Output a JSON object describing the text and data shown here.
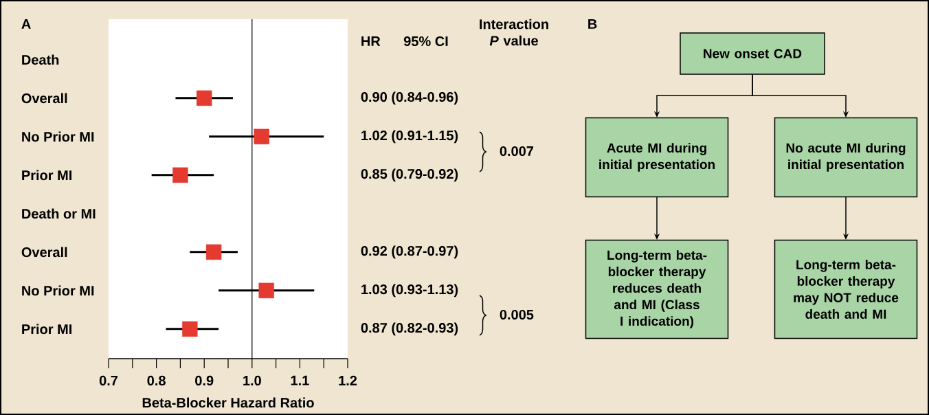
{
  "chart_data": [
    {
      "type": "scatter",
      "title": "A",
      "orientation": "horizontal",
      "marker": "square",
      "color": "#e53a2f",
      "categories": [
        "Death",
        "Overall",
        "No Prior MI",
        "Prior MI",
        "Death or MI",
        "Overall",
        "No Prior MI",
        "Prior MI"
      ],
      "values": [
        null,
        0.9,
        1.02,
        0.85,
        null,
        0.92,
        1.03,
        0.87
      ],
      "errors": [
        null,
        [
          0.84,
          0.96
        ],
        [
          0.91,
          1.15
        ],
        [
          0.79,
          0.92
        ],
        null,
        [
          0.87,
          0.97
        ],
        [
          0.93,
          1.13
        ],
        [
          0.82,
          0.93
        ]
      ],
      "value_labels": [
        null,
        "0.90 (0.84-0.96)",
        "1.02 (0.91-1.15)",
        "0.85 (0.79-0.92)",
        null,
        "0.92 (0.87-0.97)",
        "1.03 (0.93-1.13)",
        "0.87 (0.82-0.93)"
      ],
      "xlim": [
        0.7,
        1.2
      ],
      "xticks": [
        0.7,
        {
          "value": 0.75,
          "label": null
        },
        0.8,
        {
          "value": 0.85,
          "label": null
        },
        0.9,
        {
          "value": 0.95,
          "label": null
        },
        {
          "value": 1.0,
          "label": "1.0"
        },
        {
          "value": 1.05,
          "label": null
        },
        1.1,
        {
          "value": 1.15,
          "label": null
        },
        1.2
      ],
      "xlabel": "Beta-Blocker Hazard Ratio",
      "ref_lines": [
        {
          "axis": "x",
          "value": 1.0
        }
      ],
      "annotations": [
        "HR",
        "95% CI",
        "Interaction *P* value",
        "0.007",
        "0.005"
      ]
    },
    {
      "type": "other",
      "title": "B",
      "annotations": [
        "New onset CAD",
        "Acute MI during initial presentation",
        "No acute MI during initial presentation",
        "Long-term beta-blocker therapy reduces death and MI (Class I indication)",
        "Long-term beta- blocker therapy may NOT reduce death and MI"
      ]
    }
  ]
}
